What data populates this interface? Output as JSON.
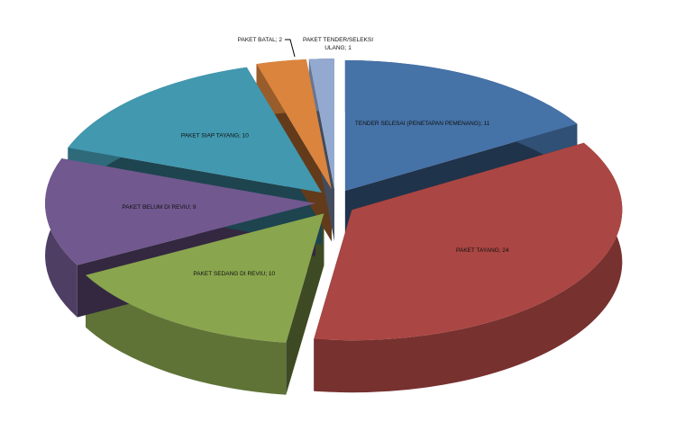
{
  "chart_data": {
    "type": "pie",
    "style": "3d-exploded",
    "title": "",
    "categories": [
      "TENDER SELESAI (PENETAPAN PEMENANG)",
      "PAKET TAYANG",
      "PAKET SEDANG DI REVIU",
      "PAKET BELUM DI REVIU",
      "PAKET SIAP TAYANG",
      "PAKET BATAL",
      "PAKET TENDER/SELEKSI ULANG"
    ],
    "values": [
      11,
      24,
      10,
      9,
      10,
      2,
      1
    ],
    "labels": [
      "TENDER SELESAI (PENETAPAN PEMENANG); 11",
      "PAKET TAYANG; 24",
      "PAKET SEDANG DI REVIU; 10",
      "PAKET BELUM DI REVIU; 9",
      "PAKET SIAP TAYANG; 10",
      "PAKET BATAL; 2",
      "PAKET TENDER/SELEKSI ULANG; 1"
    ],
    "colors": [
      "#4572a7",
      "#aa4643",
      "#89a54e",
      "#71588f",
      "#4198af",
      "#db843d",
      "#93a9cf"
    ],
    "legend": "none"
  }
}
